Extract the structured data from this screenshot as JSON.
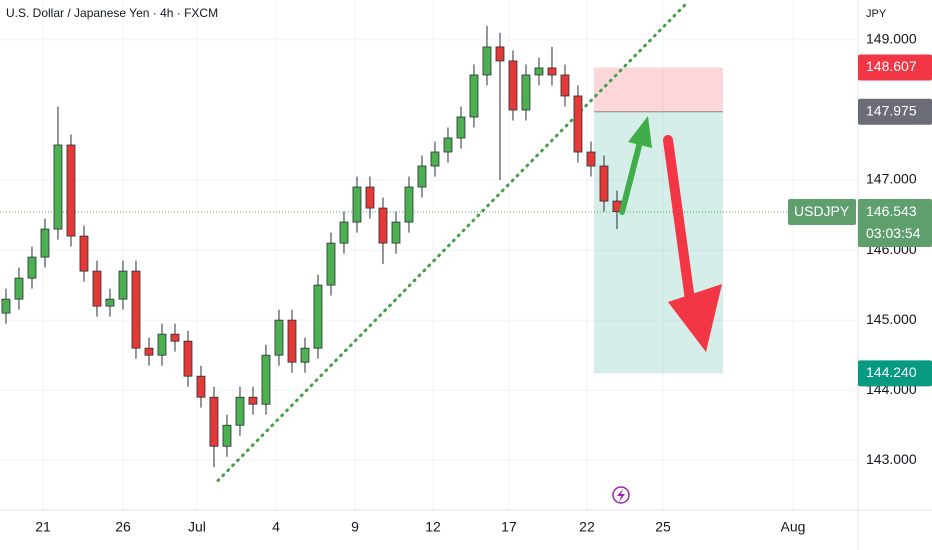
{
  "header": {
    "title": "U.S. Dollar / Japanese Yen · 4h · FXCM",
    "currency": "JPY"
  },
  "chart_data": {
    "type": "candlestick",
    "open": [
      145.1,
      145.3,
      145.6,
      145.9,
      146.3,
      147.5,
      146.2,
      145.7,
      145.2,
      145.3,
      145.7,
      144.6,
      144.5,
      144.8,
      144.7,
      144.2,
      143.9,
      143.2,
      143.5,
      143.9,
      143.8,
      144.5,
      145.0,
      144.4,
      144.6,
      145.5,
      146.1,
      146.4,
      146.9,
      146.6,
      146.1,
      146.4,
      146.9,
      147.2,
      147.4,
      147.6,
      147.9,
      148.5,
      148.9,
      148.7,
      148.0,
      148.5,
      148.6,
      148.5,
      148.2,
      147.4,
      147.2,
      146.7
    ],
    "high": [
      145.45,
      145.75,
      146.05,
      146.45,
      148.05,
      147.65,
      146.35,
      145.85,
      145.45,
      145.85,
      145.85,
      144.75,
      144.95,
      144.95,
      144.85,
      144.35,
      144.05,
      143.65,
      144.05,
      144.05,
      144.65,
      145.15,
      145.15,
      144.75,
      145.65,
      146.25,
      146.55,
      147.05,
      147.05,
      146.75,
      146.55,
      147.05,
      147.35,
      147.55,
      147.75,
      148.05,
      148.65,
      149.2,
      149.1,
      148.85,
      148.65,
      148.75,
      148.9,
      148.65,
      148.35,
      147.55,
      147.35,
      146.85
    ],
    "low": [
      144.95,
      145.15,
      145.45,
      145.75,
      146.15,
      146.05,
      145.55,
      145.05,
      145.05,
      145.15,
      144.45,
      144.35,
      144.35,
      144.55,
      144.05,
      143.75,
      142.9,
      143.05,
      143.35,
      143.65,
      143.65,
      144.35,
      144.25,
      144.25,
      144.45,
      145.35,
      145.95,
      146.25,
      146.45,
      145.8,
      145.95,
      146.25,
      146.75,
      147.05,
      147.25,
      147.45,
      147.75,
      148.35,
      147.0,
      147.85,
      147.85,
      148.35,
      148.35,
      148.05,
      147.25,
      147.05,
      146.55,
      146.3
    ],
    "close": [
      145.3,
      145.6,
      145.9,
      146.3,
      147.5,
      146.2,
      145.7,
      145.2,
      145.3,
      145.7,
      144.6,
      144.5,
      144.8,
      144.7,
      144.2,
      143.9,
      143.2,
      143.5,
      143.9,
      143.8,
      144.5,
      145.0,
      144.4,
      144.6,
      145.5,
      146.1,
      146.4,
      146.9,
      146.6,
      146.1,
      146.4,
      146.9,
      147.2,
      147.4,
      147.6,
      147.9,
      148.5,
      148.9,
      148.7,
      148.0,
      148.5,
      148.6,
      148.5,
      148.2,
      147.4,
      147.2,
      146.7,
      146.55
    ],
    "up_color": "#4caf50",
    "down_color": "#e53935",
    "xlim": [
      -0.46,
      65.54
    ],
    "xticks": [
      {
        "value": 2.85,
        "label": "21"
      },
      {
        "value": 9.0,
        "label": "26"
      },
      {
        "value": 14.69,
        "label": "Jul"
      },
      {
        "value": 20.77,
        "label": "4"
      },
      {
        "value": 26.85,
        "label": "9"
      },
      {
        "value": 32.85,
        "label": "12"
      },
      {
        "value": 38.69,
        "label": "17"
      },
      {
        "value": 44.69,
        "label": "22"
      },
      {
        "value": 50.54,
        "label": "25"
      },
      {
        "value": 60.54,
        "label": "Aug"
      }
    ],
    "ylim": [
      142.29,
      149.57
    ],
    "yticks": [
      {
        "value": 149,
        "label": "149.000"
      },
      {
        "value": 147,
        "label": "147.000"
      },
      {
        "value": 146,
        "label": "146.000"
      },
      {
        "value": 145,
        "label": "145.000"
      },
      {
        "value": 144,
        "label": "144.000"
      },
      {
        "value": 143,
        "label": "143.000"
      }
    ],
    "grid": true,
    "last_price": {
      "symbol": "USDJPY",
      "value": 146.543,
      "countdown": "03:03:54",
      "color": "#5f9f6e"
    },
    "position": {
      "x": [
        45.23,
        55.15
      ],
      "stop": 148.607,
      "entry": 147.975,
      "target": {
        "value": 144.24,
        "label": "144.240"
      }
    },
    "trendline": {
      "x": [
        16.31,
        52.23
      ],
      "y": [
        142.71,
        149.5
      ],
      "color": "#43a047"
    }
  }
}
